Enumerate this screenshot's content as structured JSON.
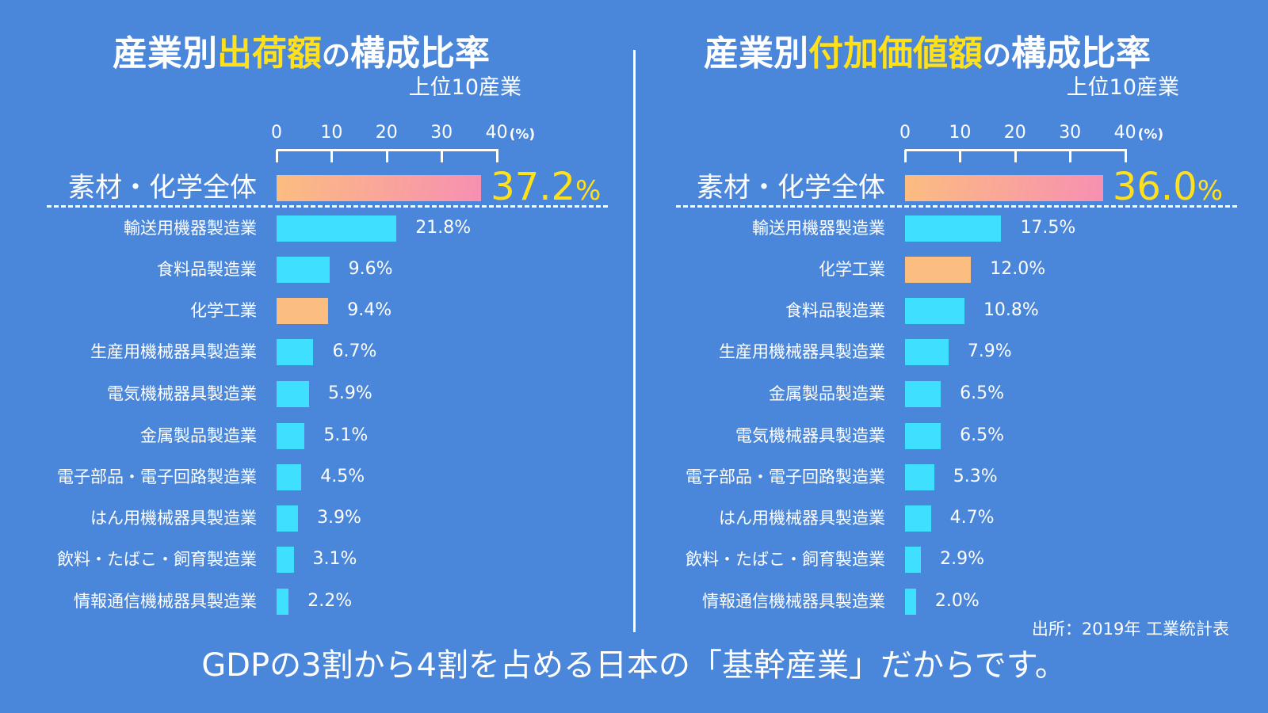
{
  "colors": {
    "background": "#4a86da",
    "bar": "#3fdfff",
    "highlight_bar": "#fcbd80",
    "total_gradient": [
      "#fcbd80",
      "#f78fb2"
    ],
    "accent_text": "#ffe01a"
  },
  "chart_data": [
    {
      "type": "bar",
      "orientation": "horizontal",
      "title": {
        "prefix": "産業別",
        "highlight": "出荷額",
        "suffix_small": "の",
        "suffix": "構成比率"
      },
      "subtitle": "上位10産業",
      "xticks": [
        "0",
        "10",
        "20",
        "30",
        "40"
      ],
      "xunit": "(%)",
      "xlim": [
        0,
        40
      ],
      "total": {
        "label": "素材・化学全体",
        "value": 37.2,
        "value_text": "37.2",
        "pct": "%"
      },
      "categories": [
        "輸送用機器製造業",
        "食料品製造業",
        "化学工業",
        "生産用機械器具製造業",
        "電気機械器具製造業",
        "金属製品製造業",
        "電子部品・電子回路製造業",
        "はん用機械器具製造業",
        "飲料・たばこ・飼育製造業",
        "情報通信機械器具製造業"
      ],
      "values": [
        21.8,
        9.6,
        9.4,
        6.7,
        5.9,
        5.1,
        4.5,
        3.9,
        3.1,
        2.2
      ],
      "value_labels": [
        "21.8%",
        "9.6%",
        "9.4%",
        "6.7%",
        "5.9%",
        "5.1%",
        "4.5%",
        "3.9%",
        "3.1%",
        "2.2%"
      ],
      "highlighted": [
        "化学工業"
      ]
    },
    {
      "type": "bar",
      "orientation": "horizontal",
      "title": {
        "prefix": "産業別",
        "highlight": "付加価値額",
        "suffix_small": "の",
        "suffix": "構成比率"
      },
      "subtitle": "上位10産業",
      "xticks": [
        "0",
        "10",
        "20",
        "30",
        "40"
      ],
      "xunit": "(%)",
      "xlim": [
        0,
        40
      ],
      "total": {
        "label": "素材・化学全体",
        "value": 36.0,
        "value_text": "36.0",
        "pct": "%"
      },
      "categories": [
        "輸送用機器製造業",
        "化学工業",
        "食料品製造業",
        "生産用機械器具製造業",
        "金属製品製造業",
        "電気機械器具製造業",
        "電子部品・電子回路製造業",
        "はん用機械器具製造業",
        "飲料・たばこ・飼育製造業",
        "情報通信機械器具製造業"
      ],
      "values": [
        17.5,
        12.0,
        10.8,
        7.9,
        6.5,
        6.5,
        5.3,
        4.7,
        2.9,
        2.0
      ],
      "value_labels": [
        "17.5%",
        "12.0%",
        "10.8%",
        "7.9%",
        "6.5%",
        "6.5%",
        "5.3%",
        "4.7%",
        "2.9%",
        "2.0%"
      ],
      "highlighted": [
        "化学工業"
      ]
    }
  ],
  "source": "出所：2019年 工業統計表",
  "caption": "GDPの3割から4割を占める日本の「基幹産業」だからです。"
}
